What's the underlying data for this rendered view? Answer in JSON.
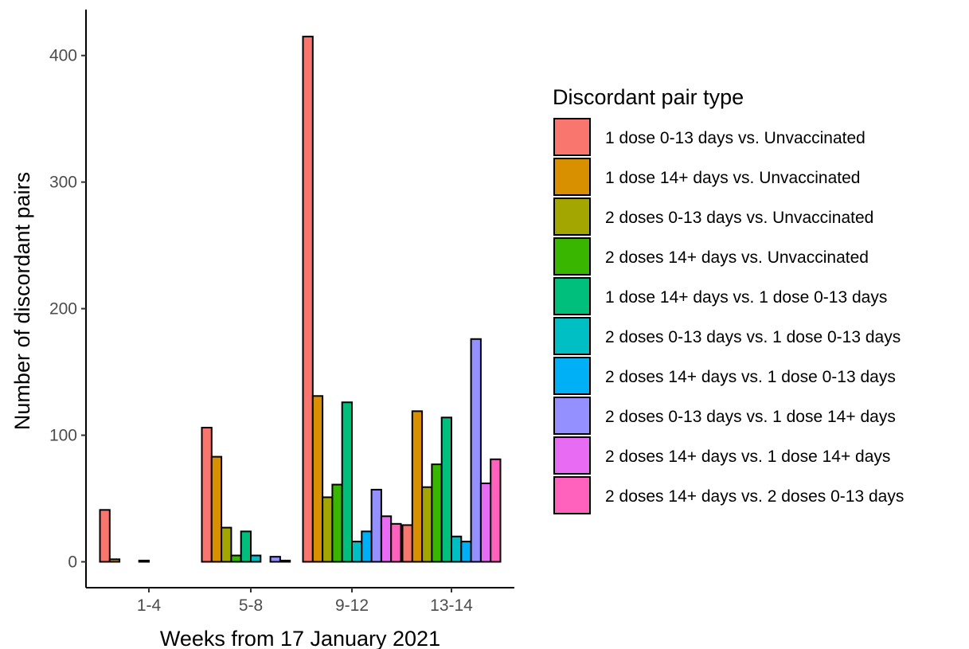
{
  "chart_data": {
    "type": "bar",
    "xlabel": "Weeks from 17 January 2021",
    "ylabel": "Number of discordant pairs",
    "categories": [
      "1-4",
      "5-8",
      "9-12",
      "13-14"
    ],
    "ylim": [
      -20,
      440
    ],
    "yticks": [
      0,
      100,
      200,
      300,
      400
    ],
    "grid": false,
    "legend_title": "Discordant pair type",
    "legend_position": "right",
    "series": [
      {
        "name": "1 dose 0-13 days vs. Unvaccinated",
        "color": "#F8766D",
        "values": [
          41,
          106,
          415,
          29
        ]
      },
      {
        "name": "1 dose 14+ days vs. Unvaccinated",
        "color": "#D89000",
        "values": [
          2,
          83,
          131,
          119
        ]
      },
      {
        "name": "2 doses 0-13 days vs. Unvaccinated",
        "color": "#A3A500",
        "values": [
          0,
          27,
          51,
          59
        ]
      },
      {
        "name": "2 doses 14+ days vs. Unvaccinated",
        "color": "#39B600",
        "values": [
          0,
          5,
          61,
          77
        ]
      },
      {
        "name": "1 dose 14+ days vs. 1 dose 0-13 days",
        "color": "#00BF7D",
        "values": [
          1,
          24,
          126,
          114
        ]
      },
      {
        "name": "2 doses 0-13 days vs. 1 dose 0-13 days",
        "color": "#00BFC4",
        "values": [
          0,
          5,
          16,
          20
        ]
      },
      {
        "name": "2 doses 14+ days vs. 1 dose 0-13 days",
        "color": "#00B0F6",
        "values": [
          0,
          0,
          24,
          16
        ]
      },
      {
        "name": "2 doses 0-13 days vs. 1 dose 14+ days",
        "color": "#9590FF",
        "values": [
          0,
          4,
          57,
          176
        ]
      },
      {
        "name": "2 doses 14+ days vs. 1 dose 14+ days",
        "color": "#E76BF3",
        "values": [
          0,
          1,
          36,
          62
        ]
      },
      {
        "name": "2 doses 14+ days vs. 2 doses 0-13 days",
        "color": "#FF62BC",
        "values": [
          0,
          0,
          30,
          81
        ]
      }
    ]
  }
}
